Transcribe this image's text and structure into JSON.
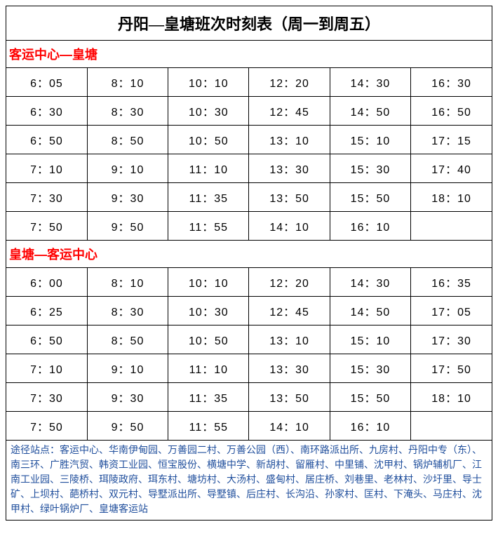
{
  "title": "丹阳—皇塘班次时刻表（周一到周五）",
  "section1": {
    "header": "客运中心—皇塘",
    "header_color": "#ff0000",
    "rows": [
      [
        "6：05",
        "8：10",
        "10：10",
        "12：20",
        "14：30",
        "16：30"
      ],
      [
        "6：30",
        "8：30",
        "10：30",
        "12：45",
        "14：50",
        "16：50"
      ],
      [
        "6：50",
        "8：50",
        "10：50",
        "13：10",
        "15：10",
        "17：15"
      ],
      [
        "7：10",
        "9：10",
        "11：10",
        "13：30",
        "15：30",
        "17：40"
      ],
      [
        "7：30",
        "9：30",
        "11：35",
        "13：50",
        "15：50",
        "18：10"
      ],
      [
        "7：50",
        "9：50",
        "11：55",
        "14：10",
        "16：10",
        ""
      ]
    ]
  },
  "section2": {
    "header": "皇塘—客运中心",
    "header_color": "#ff0000",
    "rows": [
      [
        "6：00",
        "8：10",
        "10：10",
        "12：20",
        "14：30",
        "16：35"
      ],
      [
        "6：25",
        "8：30",
        "10：30",
        "12：45",
        "14：50",
        "17：05"
      ],
      [
        "6：50",
        "8：50",
        "10：50",
        "13：10",
        "15：10",
        "17：30"
      ],
      [
        "7：10",
        "9：10",
        "11：10",
        "13：30",
        "15：30",
        "17：50"
      ],
      [
        "7：30",
        "9：30",
        "11：35",
        "13：50",
        "15：50",
        "18：10"
      ],
      [
        "7：50",
        "9：50",
        "11：55",
        "14：10",
        "16：10",
        ""
      ]
    ]
  },
  "footer": "途径站点：客运中心、华南伊甸园、万善园二村、万善公园（西）、南环路派出所、九房村、丹阳中专（东）、南三环、广胜汽贸、韩资工业园、恒宝股份、横塘中学、新胡村、留雁村、中里铺、沈甲村、锅炉辅机厂、江南工业园、三陵桥、珥陵政府、珥东村、塘坊村、大汤村、盛甸村、居庄桥、刘巷里、老林村、沙圩里、导士矿、上坝村、葩桥村、双元村、导墅派出所、导墅镇、后庄村、长沟沿、孙家村、匡村、下淹头、马庄村、沈甲村、绿叶锅炉厂、皇塘客运站",
  "footer_color": "#1f4e9c"
}
